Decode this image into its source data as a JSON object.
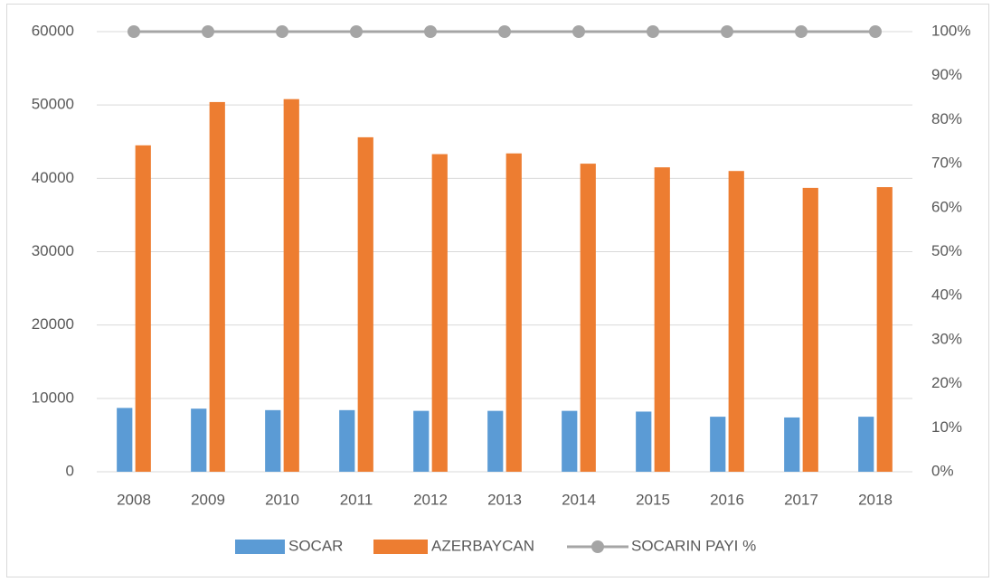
{
  "chart_data": {
    "type": "bar",
    "categories": [
      "2008",
      "2009",
      "2010",
      "2011",
      "2012",
      "2013",
      "2014",
      "2015",
      "2016",
      "2017",
      "2018"
    ],
    "series": [
      {
        "name": "SOCAR",
        "type": "bar",
        "color": "#5b9bd5",
        "values": [
          8700,
          8600,
          8400,
          8400,
          8300,
          8300,
          8300,
          8200,
          7500,
          7400,
          7500
        ]
      },
      {
        "name": "AZERBAYCAN",
        "type": "bar",
        "color": "#ed7d31",
        "values": [
          44500,
          50400,
          50800,
          45600,
          43300,
          43400,
          42000,
          41500,
          41000,
          38700,
          38800
        ]
      },
      {
        "name": "SOCARIN PAYI %",
        "type": "line",
        "axis": "y2",
        "color": "#a5a5a5",
        "values": [
          100,
          100,
          100,
          100,
          100,
          100,
          100,
          100,
          100,
          100,
          100
        ]
      }
    ],
    "ylim": [
      0,
      60000
    ],
    "yticks": [
      0,
      10000,
      20000,
      30000,
      40000,
      50000,
      60000
    ],
    "y2lim": [
      0,
      100
    ],
    "y2ticks": [
      {
        "value": 0,
        "label": "0%"
      },
      {
        "value": 10,
        "label": "10%"
      },
      {
        "value": 20,
        "label": "20%"
      },
      {
        "value": 30,
        "label": "30%"
      },
      {
        "value": 40,
        "label": "40%"
      },
      {
        "value": 50,
        "label": "50%"
      },
      {
        "value": 60,
        "label": "60%"
      },
      {
        "value": 70,
        "label": "70%"
      },
      {
        "value": 80,
        "label": "80%"
      },
      {
        "value": 90,
        "label": "90%"
      },
      {
        "value": 100,
        "label": "100%"
      }
    ],
    "grid": true,
    "legend": "bottom"
  }
}
